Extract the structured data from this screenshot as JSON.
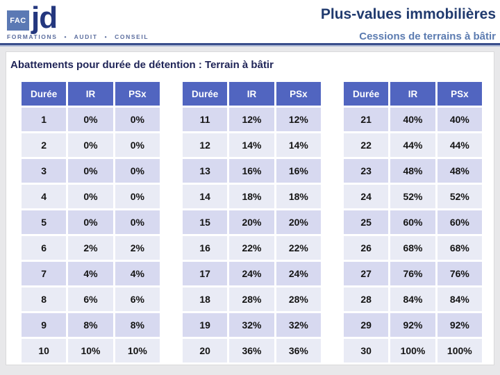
{
  "logo": {
    "fac": "FAC",
    "jd": "jd",
    "tagline": "FORMATIONS • AUDIT • CONSEIL"
  },
  "header": {
    "title": "Plus-values immobilières",
    "subtitle": "Cessions de terrains à bâtir"
  },
  "main": {
    "heading": "Abattements pour durée de détention : Terrain à bâtir"
  },
  "columns": [
    "Durée",
    "IR",
    "PSx"
  ],
  "tables": [
    {
      "rows": [
        [
          "1",
          "0%",
          "0%"
        ],
        [
          "2",
          "0%",
          "0%"
        ],
        [
          "3",
          "0%",
          "0%"
        ],
        [
          "4",
          "0%",
          "0%"
        ],
        [
          "5",
          "0%",
          "0%"
        ],
        [
          "6",
          "2%",
          "2%"
        ],
        [
          "7",
          "4%",
          "4%"
        ],
        [
          "8",
          "6%",
          "6%"
        ],
        [
          "9",
          "8%",
          "8%"
        ],
        [
          "10",
          "10%",
          "10%"
        ]
      ]
    },
    {
      "rows": [
        [
          "11",
          "12%",
          "12%"
        ],
        [
          "12",
          "14%",
          "14%"
        ],
        [
          "13",
          "16%",
          "16%"
        ],
        [
          "14",
          "18%",
          "18%"
        ],
        [
          "15",
          "20%",
          "20%"
        ],
        [
          "16",
          "22%",
          "22%"
        ],
        [
          "17",
          "24%",
          "24%"
        ],
        [
          "18",
          "28%",
          "28%"
        ],
        [
          "19",
          "32%",
          "32%"
        ],
        [
          "20",
          "36%",
          "36%"
        ]
      ]
    },
    {
      "rows": [
        [
          "21",
          "40%",
          "40%"
        ],
        [
          "22",
          "44%",
          "44%"
        ],
        [
          "23",
          "48%",
          "48%"
        ],
        [
          "24",
          "52%",
          "52%"
        ],
        [
          "25",
          "60%",
          "60%"
        ],
        [
          "26",
          "68%",
          "68%"
        ],
        [
          "27",
          "76%",
          "76%"
        ],
        [
          "28",
          "84%",
          "84%"
        ],
        [
          "29",
          "92%",
          "92%"
        ],
        [
          "30",
          "100%",
          "100%"
        ]
      ]
    }
  ],
  "colors": {
    "fac-box-bg": "#5B79B4",
    "jd-color": "#24377E",
    "tagline-color": "#5B6D9E",
    "title-color": "#203A6E",
    "subtitle-color": "#5B7BB0",
    "divider-color": "#3A4E8C",
    "page-bg": "#E8E8EA",
    "heading-color": "#1E2356",
    "table-header-bg": "#5165C0",
    "row-odd-bg": "#D7D9F0",
    "row-even-bg": "#E9EBF5",
    "cell-text": "#141414"
  }
}
